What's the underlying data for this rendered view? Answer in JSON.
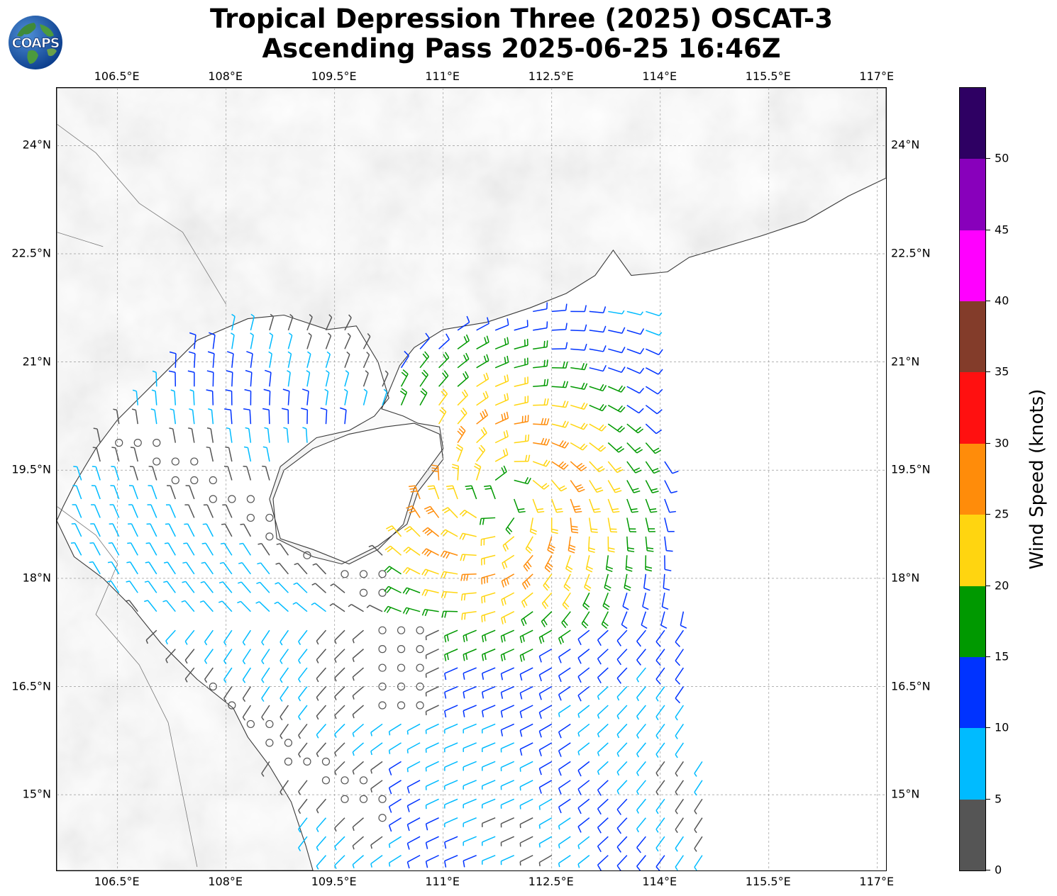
{
  "title": {
    "line1": "Tropical Depression Three (2025) OSCAT-3",
    "line2": "Ascending Pass 2025-06-25 16:46Z"
  },
  "logo": {
    "text": "COAPS",
    "icon": "globe-icon"
  },
  "map": {
    "lon_labels": [
      "106.5°E",
      "108°E",
      "109.5°E",
      "111°E",
      "112.5°E",
      "114°E",
      "115.5°E",
      "117°E"
    ],
    "lat_labels": [
      "24°N",
      "22.5°N",
      "21°N",
      "19.5°N",
      "18°N",
      "16.5°N",
      "15°N"
    ],
    "lon_values": [
      106.5,
      108,
      109.5,
      111,
      112.5,
      114,
      115.5,
      117
    ],
    "lat_values": [
      24,
      22.5,
      21,
      19.5,
      18,
      16.5,
      15
    ],
    "lon_range": [
      105.66,
      117.12
    ],
    "lat_range": [
      13.95,
      24.8
    ],
    "background": "grayscale terrain",
    "gridlines": true,
    "storm_center": {
      "lon": 111.8,
      "lat": 19.1
    }
  },
  "colorbar": {
    "label": "Wind Speed (knots)",
    "ticks": [
      "0",
      "5",
      "10",
      "15",
      "20",
      "25",
      "30",
      "35",
      "40",
      "45",
      "50"
    ],
    "bins": [
      {
        "min": 0,
        "max": 5,
        "color": "#555555"
      },
      {
        "min": 5,
        "max": 10,
        "color": "#00bbff"
      },
      {
        "min": 10,
        "max": 15,
        "color": "#0033ff"
      },
      {
        "min": 15,
        "max": 20,
        "color": "#009900"
      },
      {
        "min": 20,
        "max": 25,
        "color": "#ffd510"
      },
      {
        "min": 25,
        "max": 30,
        "color": "#ff8c0a"
      },
      {
        "min": 30,
        "max": 35,
        "color": "#ff1010"
      },
      {
        "min": 35,
        "max": 40,
        "color": "#833c2a"
      },
      {
        "min": 40,
        "max": 45,
        "color": "#ff00ff"
      },
      {
        "min": 45,
        "max": 50,
        "color": "#8800bb"
      },
      {
        "min": 50,
        "max": 55,
        "color": "#2e0063"
      }
    ]
  }
}
